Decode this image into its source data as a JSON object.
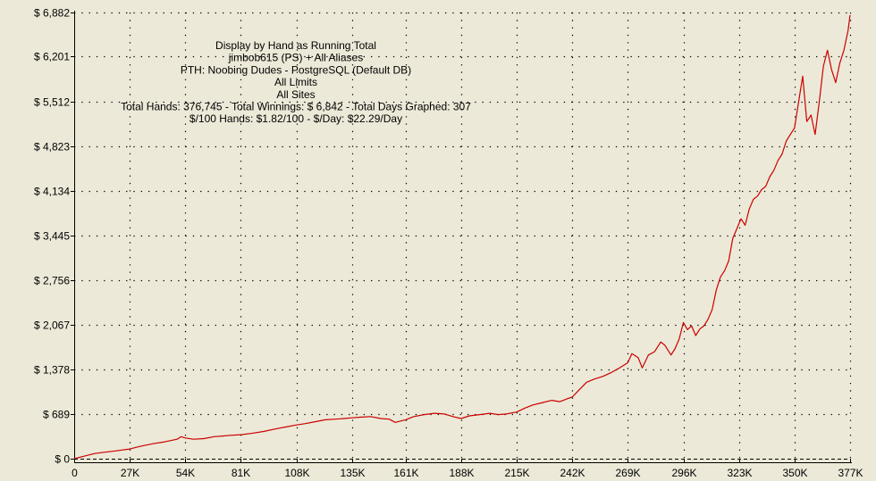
{
  "chart_data": {
    "type": "line",
    "title_lines": [
      "Display by Hand as Running Total",
      "jimbob615 (PS) + All Aliases",
      "PTH: Noobing Dudes - PostgreSQL (Default DB)",
      "All Limits",
      "All Sites",
      "Total Hands: 376,745 - Total Winnings: $ 6,842 - Total Days Graphed: 307",
      "$/100 Hands: $1.82/100 - $/Day: $22.29/Day"
    ],
    "xlabel": "",
    "ylabel": "",
    "x_tick_values": [
      0,
      27000,
      54000,
      81000,
      108000,
      135000,
      161000,
      188000,
      215000,
      242000,
      269000,
      296000,
      323000,
      350000,
      377000
    ],
    "x_tick_labels": [
      "0",
      "27K",
      "54K",
      "81K",
      "108K",
      "135K",
      "161K",
      "188K",
      "215K",
      "242K",
      "269K",
      "296K",
      "323K",
      "350K",
      "377K"
    ],
    "y_tick_values": [
      0,
      689,
      1378,
      2067,
      2756,
      3445,
      4134,
      4823,
      5512,
      6201,
      6882
    ],
    "y_tick_labels": [
      "$ 0",
      "$ 689",
      "$ 1,378",
      "$ 2,067",
      "$ 2,756",
      "$ 3,445",
      "$ 4,134",
      "$ 4,823",
      "$ 5,512",
      "$ 6,201",
      "$ 6,882"
    ],
    "xlim": [
      0,
      377000
    ],
    "ylim": [
      0,
      6882
    ],
    "grid": true,
    "series": [
      {
        "color": "#cc0000",
        "x": [
          0,
          5000,
          10000,
          15000,
          20000,
          27000,
          32000,
          38000,
          44000,
          50000,
          52000,
          54000,
          58000,
          63000,
          68000,
          72000,
          76000,
          81000,
          86000,
          92000,
          98000,
          103000,
          108000,
          112000,
          117000,
          122000,
          127000,
          131000,
          135000,
          139000,
          144000,
          149000,
          153000,
          156000,
          161000,
          165000,
          170000,
          175000,
          180000,
          184000,
          188000,
          192000,
          197000,
          202000,
          206000,
          210000,
          215000,
          219000,
          223000,
          227000,
          232000,
          236000,
          240000,
          242000,
          245000,
          249000,
          253000,
          257000,
          261000,
          265000,
          269000,
          271000,
          274000,
          276000,
          279000,
          282000,
          285000,
          287000,
          290000,
          292000,
          294000,
          296000,
          298000,
          300000,
          302000,
          304000,
          306000,
          308000,
          310000,
          312000,
          314000,
          316000,
          318000,
          320000,
          322000,
          324000,
          326000,
          328000,
          330000,
          332000,
          334000,
          336000,
          338000,
          340000,
          342000,
          344000,
          346000,
          348000,
          350000,
          352000,
          354000,
          356000,
          358000,
          360000,
          362000,
          364000,
          366000,
          368000,
          370000,
          372000,
          374000,
          376000,
          377000
        ],
        "y": [
          0,
          40,
          80,
          100,
          120,
          150,
          190,
          230,
          260,
          300,
          340,
          320,
          300,
          310,
          340,
          350,
          360,
          370,
          390,
          420,
          460,
          490,
          520,
          540,
          570,
          600,
          610,
          620,
          630,
          640,
          650,
          620,
          610,
          560,
          600,
          650,
          680,
          700,
          690,
          650,
          620,
          660,
          680,
          700,
          680,
          690,
          720,
          780,
          830,
          860,
          900,
          880,
          930,
          950,
          1050,
          1180,
          1230,
          1270,
          1330,
          1400,
          1480,
          1620,
          1560,
          1400,
          1600,
          1650,
          1800,
          1750,
          1600,
          1700,
          1850,
          2100,
          1990,
          2050,
          1900,
          2000,
          2050,
          2150,
          2300,
          2600,
          2800,
          2900,
          3050,
          3400,
          3550,
          3700,
          3600,
          3850,
          4000,
          4050,
          4150,
          4200,
          4350,
          4450,
          4600,
          4700,
          4900,
          5000,
          5100,
          5500,
          5900,
          5200,
          5300,
          5000,
          5500,
          6050,
          6300,
          6000,
          5800,
          6100,
          6300,
          6600,
          6842
        ]
      }
    ]
  }
}
